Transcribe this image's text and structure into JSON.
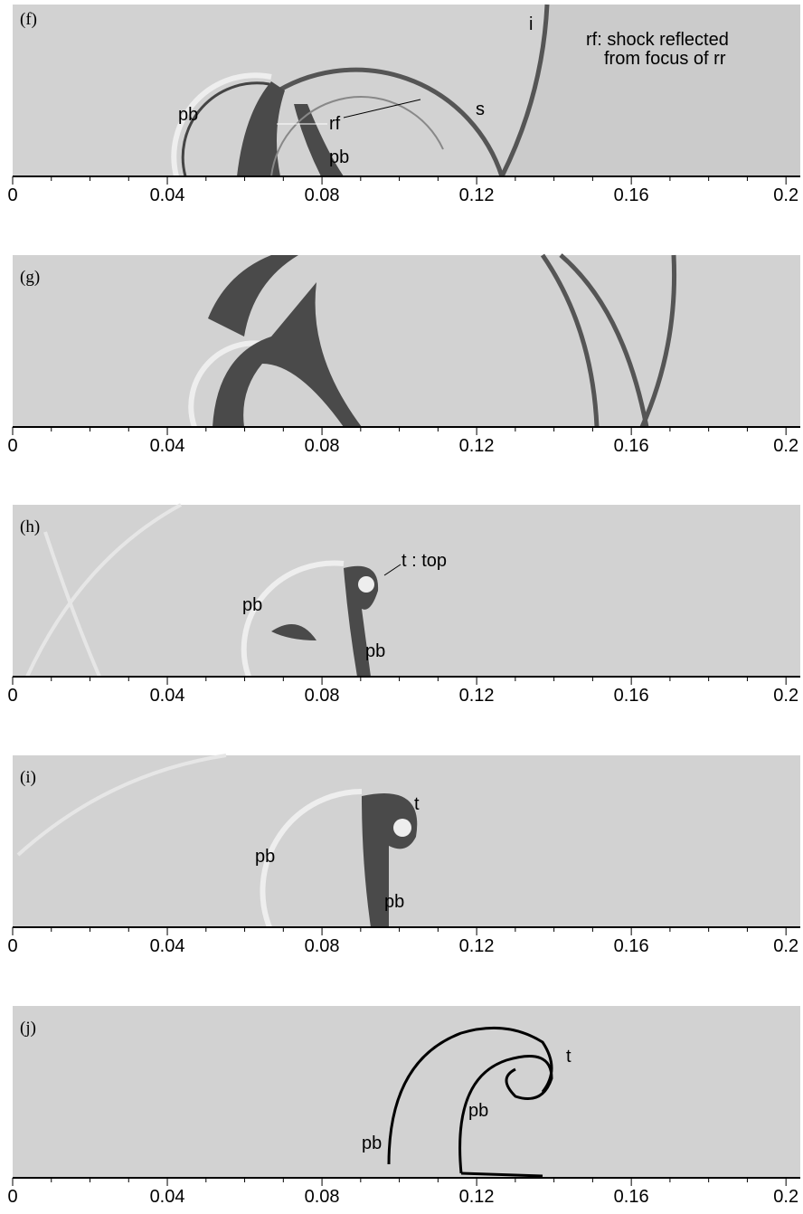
{
  "panels": [
    {
      "label": "(f)",
      "annotations": [
        "i",
        "rf: shock reflected",
        "from focus of rr",
        "pb",
        "rf",
        "s",
        "pb"
      ]
    },
    {
      "label": "(g)",
      "annotations": []
    },
    {
      "label": "(h)",
      "annotations": [
        "t : top",
        "pb",
        "pb"
      ]
    },
    {
      "label": "(i)",
      "annotations": [
        "t",
        "pb",
        "pb"
      ]
    },
    {
      "label": "(j)",
      "annotations": [
        "t",
        "pb",
        "pb"
      ]
    }
  ],
  "axis": {
    "xlim": [
      0,
      0.2037
    ],
    "xticks": [
      0,
      0.04,
      0.08,
      0.12,
      0.16,
      0.2
    ],
    "xminorticks": [
      0.01,
      0.02,
      0.03,
      0.05,
      0.06,
      0.07,
      0.09,
      0.1,
      0.11,
      0.13,
      0.14,
      0.15,
      0.17,
      0.18,
      0.19
    ]
  }
}
